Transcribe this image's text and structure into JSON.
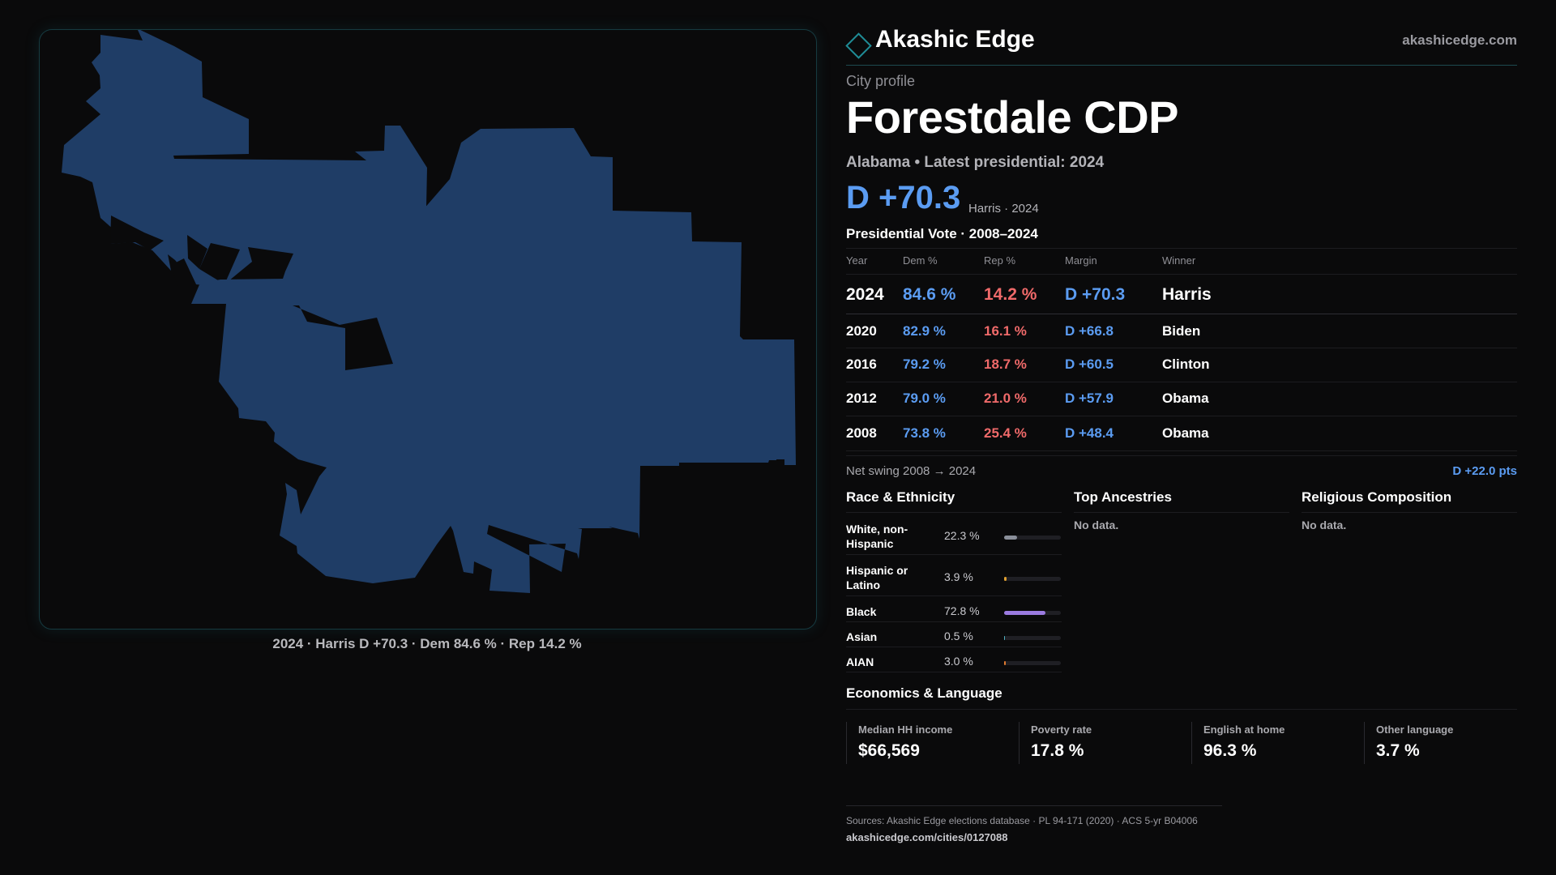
{
  "map": {
    "caption": "2024 · Harris D +70.3 · Dem 84.6 % · Rep 14.2 %",
    "fill_color": "#1f3d66"
  },
  "header": {
    "brand": "Akashic Edge",
    "brand_icon": "diamond-outline-icon",
    "domain": "akashicedge.com"
  },
  "profile": {
    "eyebrow": "City profile",
    "title": "Forestdale CDP",
    "subline": "Alabama • Latest presidential: 2024",
    "margin": "D +70.3",
    "margin_note": "Harris · 2024"
  },
  "vote": {
    "title": "Presidential Vote · 2008–2024",
    "columns": [
      "Year",
      "Dem %",
      "Rep %",
      "Margin",
      "Winner"
    ],
    "rows": [
      {
        "year": "2024",
        "dem": "84.6 %",
        "rep": "14.2 %",
        "margin": "D +70.3",
        "winner": "Harris"
      },
      {
        "year": "2020",
        "dem": "82.9 %",
        "rep": "16.1 %",
        "margin": "D +66.8",
        "winner": "Biden"
      },
      {
        "year": "2016",
        "dem": "79.2 %",
        "rep": "18.7 %",
        "margin": "D +60.5",
        "winner": "Clinton"
      },
      {
        "year": "2012",
        "dem": "79.0 %",
        "rep": "21.0 %",
        "margin": "D +57.9",
        "winner": "Obama"
      },
      {
        "year": "2008",
        "dem": "73.8 %",
        "rep": "25.4 %",
        "margin": "D +48.4",
        "winner": "Obama"
      }
    ],
    "swing_label": "Net swing 2008 → 2024",
    "swing_value": "D +22.0 pts"
  },
  "race": {
    "title": "Race & Ethnicity",
    "rows": [
      {
        "label": "White, non-Hispanic",
        "value": "22.3 %",
        "pct": 22.3,
        "color": "#8a8f9a"
      },
      {
        "label": "Hispanic or Latino",
        "value": "3.9 %",
        "pct": 3.9,
        "color": "#e0a030"
      },
      {
        "label": "Black",
        "value": "72.8 %",
        "pct": 72.8,
        "color": "#9b7be0"
      },
      {
        "label": "Asian",
        "value": "0.5 %",
        "pct": 0.5,
        "color": "#4fb0c0"
      },
      {
        "label": "AIAN",
        "value": "3.0 %",
        "pct": 3.0,
        "color": "#e07a30"
      }
    ]
  },
  "ancestries": {
    "title": "Top Ancestries",
    "empty": "No data."
  },
  "religion": {
    "title": "Religious Composition",
    "empty": "No data."
  },
  "economics": {
    "title": "Economics & Language",
    "stats": [
      {
        "label": "Median HH income",
        "value": "$66,569"
      },
      {
        "label": "Poverty rate",
        "value": "17.8 %"
      },
      {
        "label": "English at home",
        "value": "96.3 %"
      },
      {
        "label": "Other language",
        "value": "3.7 %"
      }
    ]
  },
  "footer": {
    "sources": "Sources: Akashic Edge elections database · PL 94-171 (2020) · ACS 5-yr B04006",
    "url": "akashicedge.com/cities/0127088"
  }
}
